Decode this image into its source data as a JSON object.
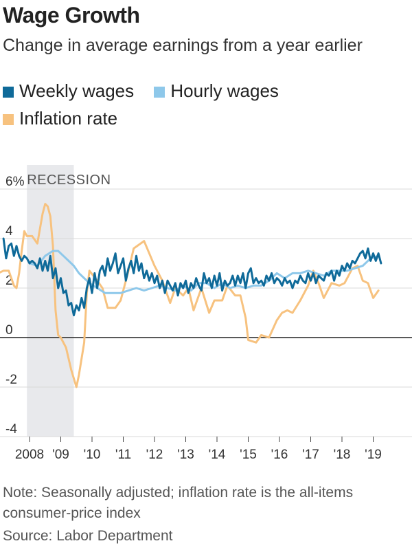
{
  "header": {
    "title": "Wage Growth",
    "subtitle": "Change in average earnings from a year earlier"
  },
  "legend": [
    {
      "label": "Weekly wages",
      "color": "#0f6a99"
    },
    {
      "label": "Hourly wages",
      "color": "#8ec8ea"
    },
    {
      "label": "Inflation rate",
      "color": "#f7c27f"
    }
  ],
  "footer": {
    "note": "Note: Seasonally adjusted; inflation rate is the all-items consumer-price index",
    "source": "Source: Labor Department"
  },
  "chart_data": {
    "type": "line",
    "title": "Wage Growth",
    "subtitle": "Change in average earnings from a year earlier",
    "ylim": [
      -4,
      6
    ],
    "xlim": [
      "2006-11",
      "2019-05"
    ],
    "y_ticks": [
      {
        "value": 6,
        "label": "6%"
      },
      {
        "value": 4,
        "label": "4"
      },
      {
        "value": 2,
        "label": "2"
      },
      {
        "value": 0,
        "label": "0"
      },
      {
        "value": -2,
        "label": "-2"
      },
      {
        "value": -4,
        "label": "-4"
      }
    ],
    "x_ticks": [
      {
        "date": "2008-01",
        "label": "2008"
      },
      {
        "date": "2009-01",
        "label": "'09"
      },
      {
        "date": "2010-01",
        "label": "'10"
      },
      {
        "date": "2011-01",
        "label": "'11"
      },
      {
        "date": "2012-01",
        "label": "'12"
      },
      {
        "date": "2013-01",
        "label": "'13"
      },
      {
        "date": "2014-01",
        "label": "'14"
      },
      {
        "date": "2015-01",
        "label": "'15"
      },
      {
        "date": "2016-01",
        "label": "'16"
      },
      {
        "date": "2017-01",
        "label": "'17"
      },
      {
        "date": "2018-01",
        "label": "'18"
      },
      {
        "date": "2019-01",
        "label": "'19"
      }
    ],
    "grid": true,
    "zero_line": true,
    "recession": {
      "label": "RECESSION",
      "start": "2007-12",
      "end": "2009-06"
    },
    "series": [
      {
        "name": "Inflation rate",
        "color": "#f7c27f",
        "points": [
          [
            "2007-01",
            2.6
          ],
          [
            "2007-03",
            2.7
          ],
          [
            "2007-05",
            2.7
          ],
          [
            "2007-07",
            2.1
          ],
          [
            "2007-08",
            2.0
          ],
          [
            "2007-09",
            2.6
          ],
          [
            "2007-10",
            3.5
          ],
          [
            "2007-11",
            4.3
          ],
          [
            "2007-12",
            4.1
          ],
          [
            "2008-02",
            4.1
          ],
          [
            "2008-04",
            3.8
          ],
          [
            "2008-06",
            5.0
          ],
          [
            "2008-07",
            5.4
          ],
          [
            "2008-08",
            5.3
          ],
          [
            "2008-09",
            4.9
          ],
          [
            "2008-10",
            3.7
          ],
          [
            "2008-11",
            1.1
          ],
          [
            "2008-12",
            0.1
          ],
          [
            "2009-01",
            0.0
          ],
          [
            "2009-03",
            -0.4
          ],
          [
            "2009-05",
            -1.3
          ],
          [
            "2009-07",
            -2.0
          ],
          [
            "2009-08",
            -1.5
          ],
          [
            "2009-10",
            -0.2
          ],
          [
            "2009-11",
            1.8
          ],
          [
            "2009-12",
            2.7
          ],
          [
            "2010-03",
            2.3
          ],
          [
            "2010-05",
            2.0
          ],
          [
            "2010-07",
            1.2
          ],
          [
            "2010-10",
            1.2
          ],
          [
            "2010-12",
            1.5
          ],
          [
            "2011-03",
            2.7
          ],
          [
            "2011-05",
            3.6
          ],
          [
            "2011-09",
            3.9
          ],
          [
            "2011-11",
            3.4
          ],
          [
            "2012-01",
            2.9
          ],
          [
            "2012-04",
            2.3
          ],
          [
            "2012-07",
            1.4
          ],
          [
            "2012-09",
            2.0
          ],
          [
            "2012-12",
            1.7
          ],
          [
            "2013-02",
            2.0
          ],
          [
            "2013-04",
            1.1
          ],
          [
            "2013-07",
            2.0
          ],
          [
            "2013-10",
            1.0
          ],
          [
            "2013-12",
            1.5
          ],
          [
            "2014-03",
            1.5
          ],
          [
            "2014-05",
            2.1
          ],
          [
            "2014-08",
            1.7
          ],
          [
            "2014-10",
            1.7
          ],
          [
            "2014-12",
            0.8
          ],
          [
            "2015-01",
            -0.1
          ],
          [
            "2015-04",
            -0.2
          ],
          [
            "2015-06",
            0.1
          ],
          [
            "2015-09",
            0.0
          ],
          [
            "2015-12",
            0.7
          ],
          [
            "2016-02",
            1.0
          ],
          [
            "2016-04",
            1.1
          ],
          [
            "2016-06",
            1.0
          ],
          [
            "2016-09",
            1.5
          ],
          [
            "2016-12",
            2.1
          ],
          [
            "2017-02",
            2.7
          ],
          [
            "2017-04",
            2.2
          ],
          [
            "2017-06",
            1.6
          ],
          [
            "2017-09",
            2.2
          ],
          [
            "2017-12",
            2.1
          ],
          [
            "2018-02",
            2.2
          ],
          [
            "2018-05",
            2.8
          ],
          [
            "2018-07",
            2.9
          ],
          [
            "2018-09",
            2.3
          ],
          [
            "2018-11",
            2.2
          ],
          [
            "2018-12",
            1.9
          ],
          [
            "2019-01",
            1.6
          ],
          [
            "2019-03",
            1.9
          ]
        ]
      },
      {
        "name": "Hourly wages",
        "color": "#8ec8ea",
        "points": [
          [
            "2008-01",
            3.0
          ],
          [
            "2008-04",
            2.9
          ],
          [
            "2008-07",
            3.3
          ],
          [
            "2008-10",
            3.5
          ],
          [
            "2008-12",
            3.5
          ],
          [
            "2009-02",
            3.3
          ],
          [
            "2009-04",
            3.1
          ],
          [
            "2009-06",
            2.9
          ],
          [
            "2009-08",
            2.6
          ],
          [
            "2009-10",
            2.4
          ],
          [
            "2009-12",
            2.2
          ],
          [
            "2010-03",
            2.0
          ],
          [
            "2010-06",
            1.8
          ],
          [
            "2010-09",
            1.8
          ],
          [
            "2010-12",
            1.8
          ],
          [
            "2011-03",
            1.9
          ],
          [
            "2011-06",
            2.0
          ],
          [
            "2011-09",
            1.9
          ],
          [
            "2011-12",
            2.0
          ],
          [
            "2012-03",
            2.1
          ],
          [
            "2012-06",
            2.0
          ],
          [
            "2012-09",
            1.9
          ],
          [
            "2012-12",
            2.1
          ],
          [
            "2013-03",
            1.9
          ],
          [
            "2013-06",
            2.2
          ],
          [
            "2013-09",
            2.2
          ],
          [
            "2013-12",
            2.0
          ],
          [
            "2014-03",
            2.2
          ],
          [
            "2014-06",
            2.0
          ],
          [
            "2014-09",
            2.1
          ],
          [
            "2014-12",
            2.0
          ],
          [
            "2015-03",
            2.1
          ],
          [
            "2015-06",
            2.1
          ],
          [
            "2015-09",
            2.3
          ],
          [
            "2015-12",
            2.6
          ],
          [
            "2016-03",
            2.4
          ],
          [
            "2016-06",
            2.6
          ],
          [
            "2016-09",
            2.6
          ],
          [
            "2016-12",
            2.7
          ],
          [
            "2017-03",
            2.6
          ],
          [
            "2017-06",
            2.5
          ],
          [
            "2017-09",
            2.7
          ],
          [
            "2017-12",
            2.7
          ],
          [
            "2018-03",
            2.7
          ],
          [
            "2018-06",
            2.8
          ],
          [
            "2018-09",
            2.9
          ],
          [
            "2018-12",
            3.2
          ],
          [
            "2019-03",
            3.3
          ]
        ]
      },
      {
        "name": "Weekly wages",
        "color": "#0f6a99",
        "points": [
          [
            "2007-03",
            4.0
          ],
          [
            "2007-04",
            3.2
          ],
          [
            "2007-05",
            3.7
          ],
          [
            "2007-06",
            3.8
          ],
          [
            "2007-07",
            3.3
          ],
          [
            "2007-08",
            3.7
          ],
          [
            "2007-09",
            3.3
          ],
          [
            "2007-10",
            3.1
          ],
          [
            "2007-11",
            3.3
          ],
          [
            "2007-12",
            3.2
          ],
          [
            "2008-01",
            3.0
          ],
          [
            "2008-02",
            3.1
          ],
          [
            "2008-03",
            3.0
          ],
          [
            "2008-04",
            2.8
          ],
          [
            "2008-05",
            3.2
          ],
          [
            "2008-06",
            2.7
          ],
          [
            "2008-07",
            3.1
          ],
          [
            "2008-08",
            2.7
          ],
          [
            "2008-09",
            3.3
          ],
          [
            "2008-10",
            2.4
          ],
          [
            "2008-11",
            2.8
          ],
          [
            "2008-12",
            2.0
          ],
          [
            "2009-01",
            2.4
          ],
          [
            "2009-02",
            1.8
          ],
          [
            "2009-03",
            1.9
          ],
          [
            "2009-04",
            1.3
          ],
          [
            "2009-05",
            1.4
          ],
          [
            "2009-06",
            0.9
          ],
          [
            "2009-07",
            1.3
          ],
          [
            "2009-08",
            1.1
          ],
          [
            "2009-09",
            1.6
          ],
          [
            "2009-10",
            1.2
          ],
          [
            "2009-11",
            2.0
          ],
          [
            "2009-12",
            2.4
          ],
          [
            "2010-01",
            1.8
          ],
          [
            "2010-02",
            2.6
          ],
          [
            "2010-03",
            2.0
          ],
          [
            "2010-04",
            2.7
          ],
          [
            "2010-05",
            2.9
          ],
          [
            "2010-06",
            2.5
          ],
          [
            "2010-07",
            3.2
          ],
          [
            "2010-08",
            2.7
          ],
          [
            "2010-09",
            3.0
          ],
          [
            "2010-10",
            3.4
          ],
          [
            "2010-11",
            2.6
          ],
          [
            "2010-12",
            2.9
          ],
          [
            "2011-01",
            3.2
          ],
          [
            "2011-02",
            2.3
          ],
          [
            "2011-03",
            2.8
          ],
          [
            "2011-04",
            3.1
          ],
          [
            "2011-05",
            2.6
          ],
          [
            "2011-06",
            3.3
          ],
          [
            "2011-07",
            2.7
          ],
          [
            "2011-08",
            3.0
          ],
          [
            "2011-09",
            2.4
          ],
          [
            "2011-10",
            2.7
          ],
          [
            "2011-11",
            2.3
          ],
          [
            "2011-12",
            2.6
          ],
          [
            "2012-01",
            2.2
          ],
          [
            "2012-02",
            2.5
          ],
          [
            "2012-03",
            2.0
          ],
          [
            "2012-04",
            2.3
          ],
          [
            "2012-05",
            1.8
          ],
          [
            "2012-06",
            2.3
          ],
          [
            "2012-07",
            2.1
          ],
          [
            "2012-08",
            1.9
          ],
          [
            "2012-09",
            2.2
          ],
          [
            "2012-10",
            1.7
          ],
          [
            "2012-11",
            2.2
          ],
          [
            "2012-12",
            2.0
          ],
          [
            "2013-01",
            2.3
          ],
          [
            "2013-02",
            1.8
          ],
          [
            "2013-03",
            2.2
          ],
          [
            "2013-04",
            2.0
          ],
          [
            "2013-05",
            2.4
          ],
          [
            "2013-06",
            2.1
          ],
          [
            "2013-07",
            1.9
          ],
          [
            "2013-08",
            2.6
          ],
          [
            "2013-09",
            2.2
          ],
          [
            "2013-10",
            2.4
          ],
          [
            "2013-11",
            2.0
          ],
          [
            "2013-12",
            2.5
          ],
          [
            "2014-01",
            2.1
          ],
          [
            "2014-02",
            2.6
          ],
          [
            "2014-03",
            1.9
          ],
          [
            "2014-04",
            2.3
          ],
          [
            "2014-05",
            2.1
          ],
          [
            "2014-06",
            2.2
          ],
          [
            "2014-07",
            2.5
          ],
          [
            "2014-08",
            2.1
          ],
          [
            "2014-09",
            2.5
          ],
          [
            "2014-10",
            2.2
          ],
          [
            "2014-11",
            2.6
          ],
          [
            "2014-12",
            2.0
          ],
          [
            "2015-01",
            2.6
          ],
          [
            "2015-02",
            2.8
          ],
          [
            "2015-03",
            2.2
          ],
          [
            "2015-04",
            2.4
          ],
          [
            "2015-05",
            2.2
          ],
          [
            "2015-06",
            2.3
          ],
          [
            "2015-07",
            2.1
          ],
          [
            "2015-08",
            2.5
          ],
          [
            "2015-09",
            2.3
          ],
          [
            "2015-10",
            2.6
          ],
          [
            "2015-11",
            2.2
          ],
          [
            "2015-12",
            2.4
          ],
          [
            "2016-01",
            2.3
          ],
          [
            "2016-02",
            2.1
          ],
          [
            "2016-03",
            2.4
          ],
          [
            "2016-04",
            2.2
          ],
          [
            "2016-05",
            2.3
          ],
          [
            "2016-06",
            2.0
          ],
          [
            "2016-07",
            2.3
          ],
          [
            "2016-08",
            2.2
          ],
          [
            "2016-09",
            2.5
          ],
          [
            "2016-10",
            2.3
          ],
          [
            "2016-11",
            2.2
          ],
          [
            "2016-12",
            2.6
          ],
          [
            "2017-01",
            2.3
          ],
          [
            "2017-02",
            2.6
          ],
          [
            "2017-03",
            2.2
          ],
          [
            "2017-04",
            2.5
          ],
          [
            "2017-05",
            2.4
          ],
          [
            "2017-06",
            2.3
          ],
          [
            "2017-07",
            2.6
          ],
          [
            "2017-08",
            2.5
          ],
          [
            "2017-09",
            2.7
          ],
          [
            "2017-10",
            2.3
          ],
          [
            "2017-11",
            2.7
          ],
          [
            "2017-12",
            2.5
          ],
          [
            "2018-01",
            2.9
          ],
          [
            "2018-02",
            2.7
          ],
          [
            "2018-03",
            3.0
          ],
          [
            "2018-04",
            2.8
          ],
          [
            "2018-05",
            3.1
          ],
          [
            "2018-06",
            3.0
          ],
          [
            "2018-07",
            3.2
          ],
          [
            "2018-08",
            3.4
          ],
          [
            "2018-09",
            3.5
          ],
          [
            "2018-10",
            3.2
          ],
          [
            "2018-11",
            3.6
          ],
          [
            "2018-12",
            3.1
          ],
          [
            "2019-01",
            3.4
          ],
          [
            "2019-02",
            3.1
          ],
          [
            "2019-03",
            3.4
          ],
          [
            "2019-04",
            3.0
          ]
        ]
      }
    ]
  }
}
